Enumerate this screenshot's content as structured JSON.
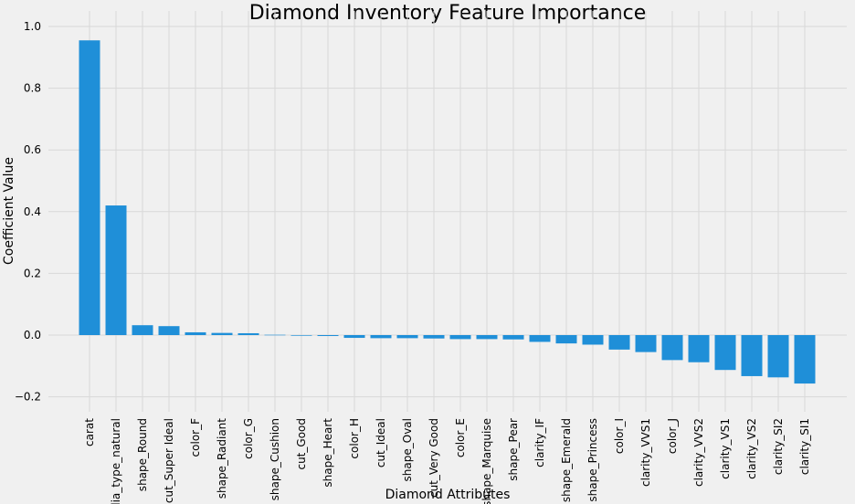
{
  "chart_data": {
    "type": "bar",
    "title": "Diamond Inventory Feature Importance",
    "xlabel": "Diamond Attributes",
    "ylabel": "Coefficient Value",
    "ylim": [
      -0.2,
      1.0
    ],
    "yticks": [
      "−0.2",
      "0.0",
      "0.2",
      "0.4",
      "0.6",
      "0.8",
      "1.0"
    ],
    "ytick_values": [
      -0.2,
      0.0,
      0.2,
      0.4,
      0.6,
      0.8,
      1.0
    ],
    "grid": true,
    "bar_color": "#1f8fd8",
    "background_color": "#f0f0f0",
    "categories": [
      "carat",
      "dia_type_natural",
      "shape_Round",
      "cut_Super Ideal",
      "color_F",
      "shape_Radiant",
      "color_G",
      "shape_Cushion",
      "cut_Good",
      "shape_Heart",
      "color_H",
      "cut_Ideal",
      "shape_Oval",
      "cut_Very Good",
      "color_E",
      "shape_Marquise",
      "shape_Pear",
      "clarity_IF",
      "shape_Emerald",
      "shape_Princess",
      "color_I",
      "clarity_VVS1",
      "color_J",
      "clarity_VVS2",
      "clarity_VS1",
      "clarity_VS2",
      "clarity_SI2",
      "clarity_SI1"
    ],
    "values": [
      0.955,
      0.42,
      0.032,
      0.029,
      0.009,
      0.007,
      0.006,
      0.001,
      -0.002,
      -0.003,
      -0.009,
      -0.01,
      -0.01,
      -0.011,
      -0.013,
      -0.013,
      -0.014,
      -0.022,
      -0.027,
      -0.031,
      -0.047,
      -0.055,
      -0.081,
      -0.088,
      -0.113,
      -0.133,
      -0.137,
      -0.157
    ]
  }
}
